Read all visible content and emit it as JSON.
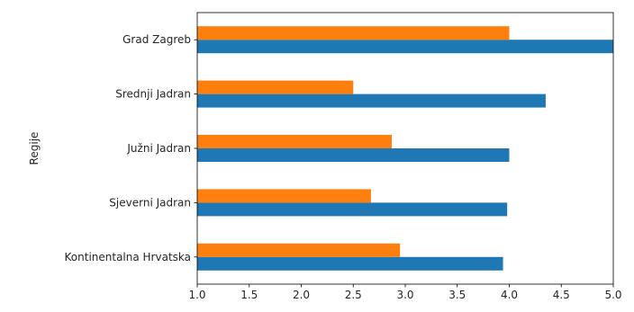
{
  "chart_data": {
    "type": "bar",
    "orientation": "horizontal",
    "categories": [
      "Kontinentalna Hrvatska",
      "Sjeverni Jadran",
      "Južni Jadran",
      "Srednji Jadran",
      "Grad Zagreb"
    ],
    "series": [
      {
        "color": "#1f77b4",
        "values": [
          3.94,
          3.98,
          4.0,
          4.35,
          5.0
        ]
      },
      {
        "color": "#ff7f0e",
        "values": [
          2.95,
          2.67,
          2.87,
          2.5,
          4.0
        ]
      }
    ],
    "xlabel": "",
    "ylabel": "Regije",
    "xlim": [
      1.0,
      5.0
    ],
    "xticks": [
      "1.0",
      "1.5",
      "2.0",
      "2.5",
      "3.0",
      "3.5",
      "4.0",
      "4.5",
      "5.0"
    ],
    "grid": false,
    "legend": "none"
  }
}
